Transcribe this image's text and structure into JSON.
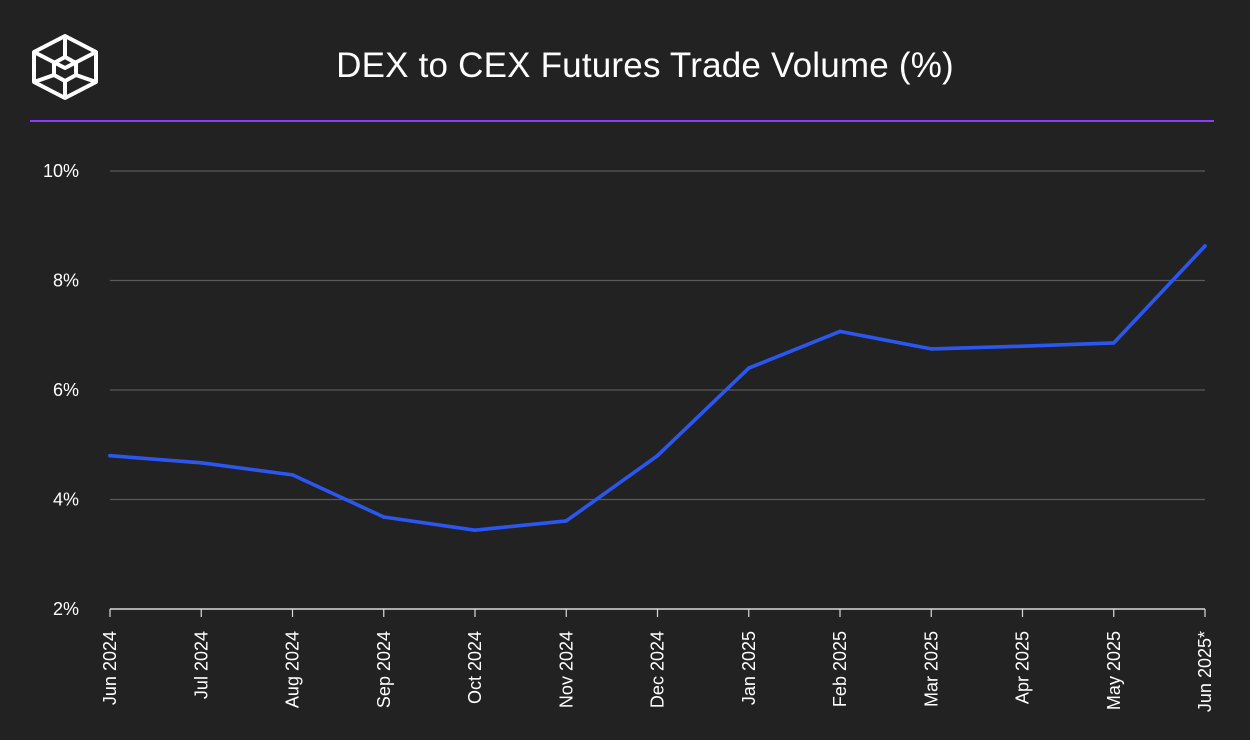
{
  "logo": {
    "icon": "cube-logo-icon"
  },
  "chart_data": {
    "type": "line",
    "title": "DEX to CEX Futures Trade Volume (%)",
    "xlabel": "",
    "ylabel": "",
    "categories": [
      "Jun 2024",
      "Jul 2024",
      "Aug 2024",
      "Sep 2024",
      "Oct 2024",
      "Nov 2024",
      "Dec 2024",
      "Jan 2025",
      "Feb 2025",
      "Mar 2025",
      "Apr 2025",
      "May 2025",
      "Jun 2025*"
    ],
    "series": [
      {
        "values": [
          4.8,
          4.67,
          4.45,
          3.68,
          3.44,
          3.61,
          4.8,
          6.4,
          7.07,
          6.75,
          6.8,
          6.86,
          8.63
        ],
        "color": "#2b57f0"
      }
    ],
    "ylim": [
      2,
      10
    ],
    "yticks": [
      2,
      4,
      6,
      8,
      10
    ],
    "ytick_labels": [
      "2%",
      "4%",
      "6%",
      "8%",
      "10%"
    ],
    "grid": true,
    "legend": "none",
    "colors": {
      "background": "#222222",
      "divider": "#8a3ff0",
      "grid": "#5a5a5a",
      "axis": "#d9d9d9",
      "text": "#ffffff"
    }
  }
}
